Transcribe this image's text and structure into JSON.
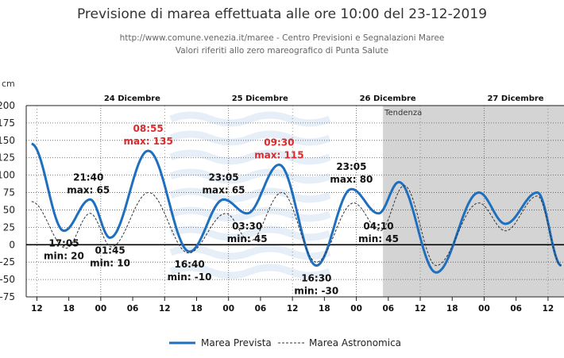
{
  "chart_data": {
    "type": "line",
    "title": "Previsione di marea effettuata alle ore 10:00 del 23-12-2019",
    "subtitle": [
      "http://www.comune.venezia.it/maree - Centro Previsioni e Segnalazioni Maree",
      "Valori riferiti allo zero mareografico di Punta Salute"
    ],
    "ylabel": "cm",
    "ylim": [
      -75,
      200
    ],
    "yticks": [
      -75,
      -50,
      -25,
      0,
      25,
      50,
      75,
      100,
      125,
      150,
      175,
      200
    ],
    "xlim": [
      10,
      111
    ],
    "xticks": [
      {
        "h": 12,
        "label": "12"
      },
      {
        "h": 18,
        "label": "18"
      },
      {
        "h": 24,
        "label": "00"
      },
      {
        "h": 30,
        "label": "06"
      },
      {
        "h": 36,
        "label": "12"
      },
      {
        "h": 42,
        "label": "18"
      },
      {
        "h": 48,
        "label": "00"
      },
      {
        "h": 54,
        "label": "06"
      },
      {
        "h": 60,
        "label": "12"
      },
      {
        "h": 66,
        "label": "18"
      },
      {
        "h": 72,
        "label": "00"
      },
      {
        "h": 78,
        "label": "06"
      },
      {
        "h": 84,
        "label": "12"
      },
      {
        "h": 90,
        "label": "18"
      },
      {
        "h": 96,
        "label": "00"
      },
      {
        "h": 102,
        "label": "06"
      },
      {
        "h": 108,
        "label": "12"
      }
    ],
    "days": [
      {
        "h": 24,
        "label": "24 Dicembre"
      },
      {
        "h": 48,
        "label": "25 Dicembre"
      },
      {
        "h": 72,
        "label": "26 Dicembre"
      },
      {
        "h": 96,
        "label": "27 Dicembre"
      }
    ],
    "trend": {
      "start_h": 77,
      "label": "Tendenza"
    },
    "grid": true,
    "legend": "bottom-center",
    "series": [
      {
        "name": "Marea Prevista",
        "color": "#1f6fbf",
        "style": "solid",
        "points": [
          [
            11,
            145
          ],
          [
            17.08,
            20
          ],
          [
            22,
            65
          ],
          [
            25.75,
            10
          ],
          [
            32.92,
            135
          ],
          [
            40.67,
            -10
          ],
          [
            47.08,
            65
          ],
          [
            51.5,
            45
          ],
          [
            57.5,
            115
          ],
          [
            64.5,
            -30
          ],
          [
            71.08,
            80
          ],
          [
            76.17,
            45
          ],
          [
            80,
            90
          ],
          [
            87,
            -40
          ],
          [
            95,
            75
          ],
          [
            100,
            30
          ],
          [
            106,
            75
          ],
          [
            110.5,
            -30
          ]
        ]
      },
      {
        "name": "Marea Astronomica",
        "color": "#333333",
        "style": "dashed",
        "points": [
          [
            11,
            62
          ],
          [
            17.5,
            -5
          ],
          [
            22,
            45
          ],
          [
            26,
            -3
          ],
          [
            33,
            75
          ],
          [
            40.5,
            -12
          ],
          [
            47.5,
            45
          ],
          [
            52,
            5
          ],
          [
            58,
            75
          ],
          [
            64.5,
            -25
          ],
          [
            71.5,
            60
          ],
          [
            76.5,
            20
          ],
          [
            81,
            85
          ],
          [
            87,
            -30
          ],
          [
            95,
            60
          ],
          [
            100,
            20
          ],
          [
            106,
            70
          ],
          [
            110.5,
            -30
          ]
        ]
      }
    ],
    "annotations": [
      {
        "h": 21.67,
        "v": 65,
        "time": "21:40",
        "value": "max: 65",
        "pos": "above",
        "highlight": false
      },
      {
        "h": 32.92,
        "v": 135,
        "time": "08:55",
        "value": "max: 135",
        "pos": "above",
        "highlight": true
      },
      {
        "h": 47.08,
        "v": 65,
        "time": "23:05",
        "value": "max: 65",
        "pos": "above",
        "highlight": false
      },
      {
        "h": 57.5,
        "v": 115,
        "time": "09:30",
        "value": "max: 115",
        "pos": "above",
        "highlight": true
      },
      {
        "h": 71.08,
        "v": 80,
        "time": "23:05",
        "value": "max: 80",
        "pos": "above",
        "highlight": false
      },
      {
        "h": 17.08,
        "v": 20,
        "time": "17:05",
        "value": "min: 20",
        "pos": "below",
        "highlight": false
      },
      {
        "h": 25.75,
        "v": 10,
        "time": "01:45",
        "value": "min: 10",
        "pos": "below",
        "highlight": false
      },
      {
        "h": 40.67,
        "v": -10,
        "time": "16:40",
        "value": "min: -10",
        "pos": "below",
        "highlight": false
      },
      {
        "h": 51.5,
        "v": 45,
        "time": "03:30",
        "value": "min: 45",
        "pos": "below",
        "highlight": false
      },
      {
        "h": 64.5,
        "v": -30,
        "time": "16:30",
        "value": "min: -30",
        "pos": "below",
        "highlight": false
      },
      {
        "h": 76.17,
        "v": 45,
        "time": "04:10",
        "value": "min: 45",
        "pos": "below",
        "highlight": false
      }
    ]
  },
  "colors": {
    "highlight": "#d92b2b",
    "trend_bg": "#d4d4d4",
    "grid": "#555555"
  }
}
